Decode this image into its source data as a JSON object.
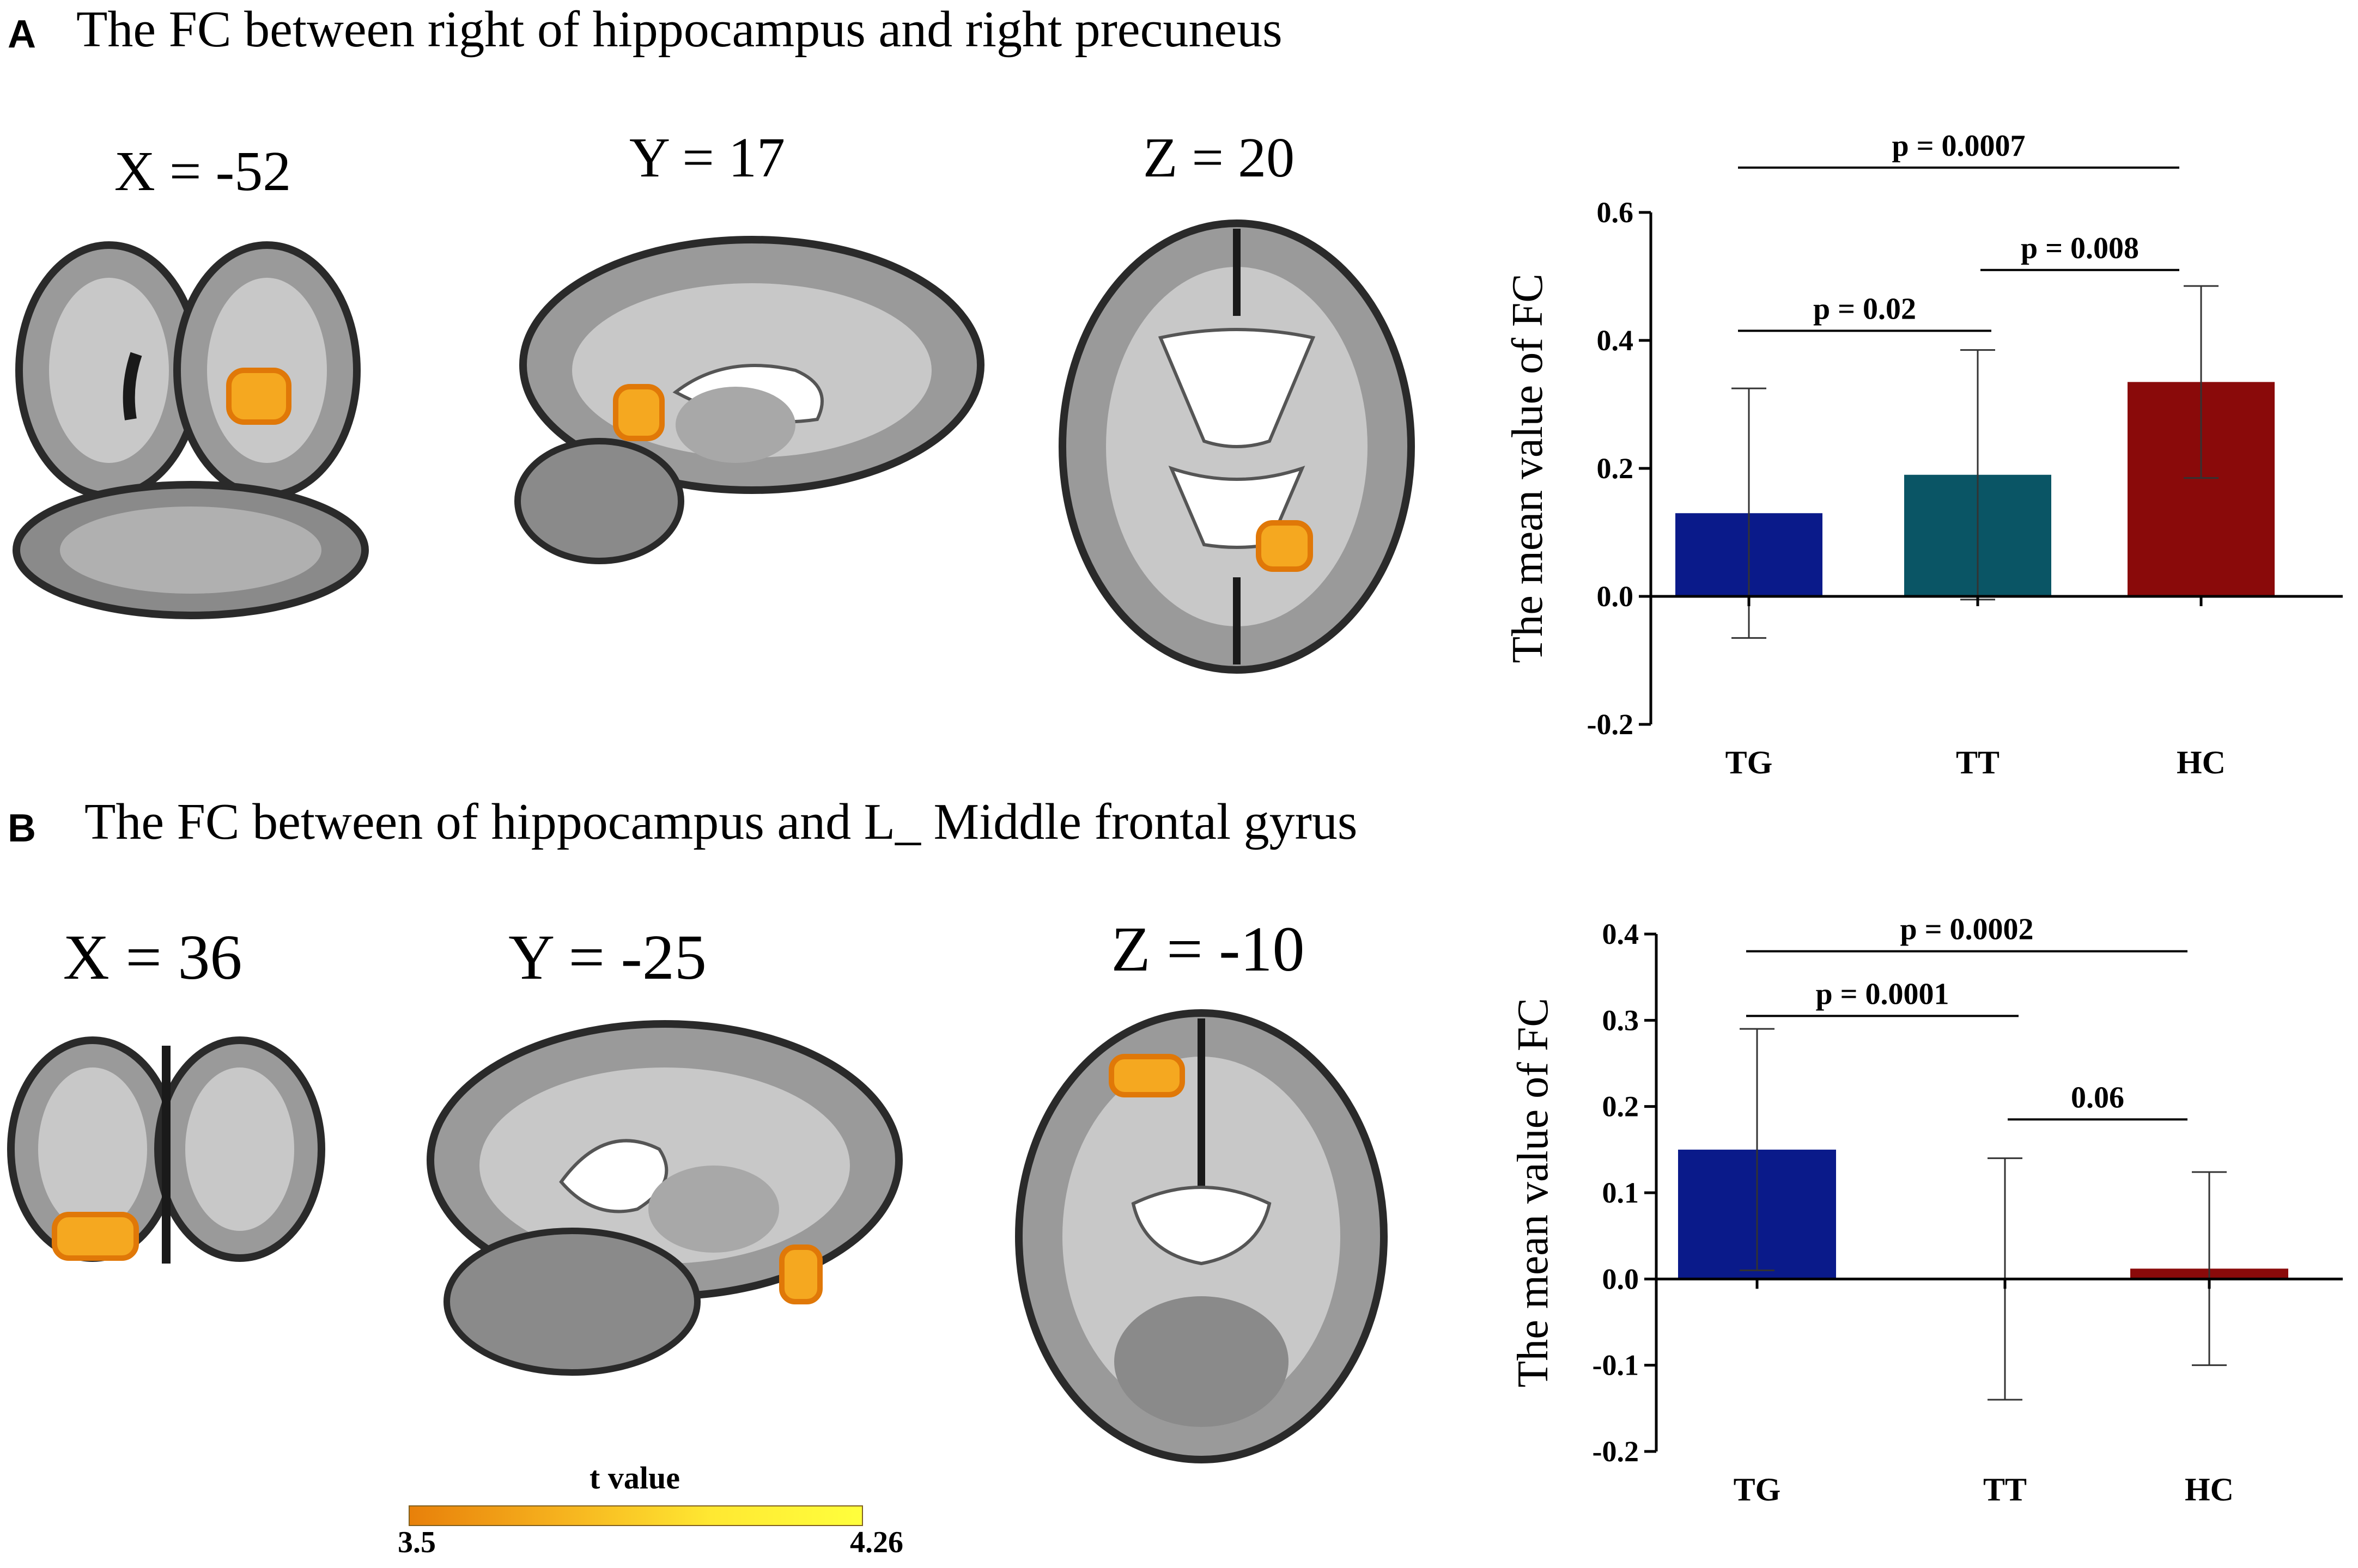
{
  "panels": [
    {
      "letter": "A",
      "title": "The FC between right of hippocampus and  right precuneus",
      "slices": [
        {
          "label": "X = -52",
          "view": "coronal-icon"
        },
        {
          "label": "Y = 17",
          "view": "sagittal-icon"
        },
        {
          "label": "Z = 20",
          "view": "axial-icon"
        }
      ]
    },
    {
      "letter": "B",
      "title": "The FC between of hippocampus and L_ Middle frontal gyrus",
      "slices": [
        {
          "label": "X = 36",
          "view": "coronal-icon"
        },
        {
          "label": "Y = -25",
          "view": "sagittal-icon"
        },
        {
          "label": "Z = -10",
          "view": "axial-icon"
        }
      ]
    }
  ],
  "colorbar": {
    "title": "t value",
    "min": "3.5",
    "max": "4.26",
    "colors": [
      "#e8800a",
      "#ffff3c"
    ]
  },
  "chart_data": [
    {
      "type": "bar",
      "ylabel": "The mean value of FC",
      "xlabel": "",
      "categories": [
        "TG",
        "TT",
        "HC"
      ],
      "values": [
        0.13,
        0.19,
        0.335
      ],
      "error": [
        0.195,
        0.195,
        0.15
      ],
      "colors": [
        "#0a1a8a",
        "#0a5565",
        "#8a0a0a"
      ],
      "ylim": [
        -0.2,
        0.6
      ],
      "yticks": [
        "-0.2",
        "0.0",
        "0.2",
        "0.4",
        "0.6"
      ],
      "ytick_values": [
        -0.2,
        0.0,
        0.2,
        0.4,
        0.6
      ],
      "comparisons": [
        {
          "from": "TG",
          "to": "HC",
          "label": "p = 0.0007",
          "level": 0.67
        },
        {
          "from": "TT",
          "to": "HC",
          "label": "p = 0.008",
          "level": 0.51
        },
        {
          "from": "TG",
          "to": "TT",
          "label": "p = 0.02",
          "level": 0.415
        }
      ]
    },
    {
      "type": "bar",
      "ylabel": "The mean value of FC",
      "xlabel": "",
      "categories": [
        "TG",
        "TT",
        "HC"
      ],
      "values": [
        0.15,
        0.0,
        0.012
      ],
      "error": [
        0.14,
        0.14,
        0.112
      ],
      "colors": [
        "#0a1a8a",
        "#0a5565",
        "#8a0a0a"
      ],
      "ylim": [
        -0.2,
        0.4
      ],
      "yticks": [
        "-0.2",
        "-0.1",
        "0.0",
        "0.1",
        "0.2",
        "0.3",
        "0.4"
      ],
      "ytick_values": [
        -0.2,
        -0.1,
        0.0,
        0.1,
        0.2,
        0.3,
        0.4
      ],
      "comparisons": [
        {
          "from": "TG",
          "to": "HC",
          "label": "p = 0.0002",
          "level": 0.38
        },
        {
          "from": "TG",
          "to": "TT",
          "label": "p = 0.0001",
          "level": 0.305
        },
        {
          "from": "TT",
          "to": "HC",
          "label": "0.06",
          "level": 0.185
        }
      ]
    }
  ]
}
